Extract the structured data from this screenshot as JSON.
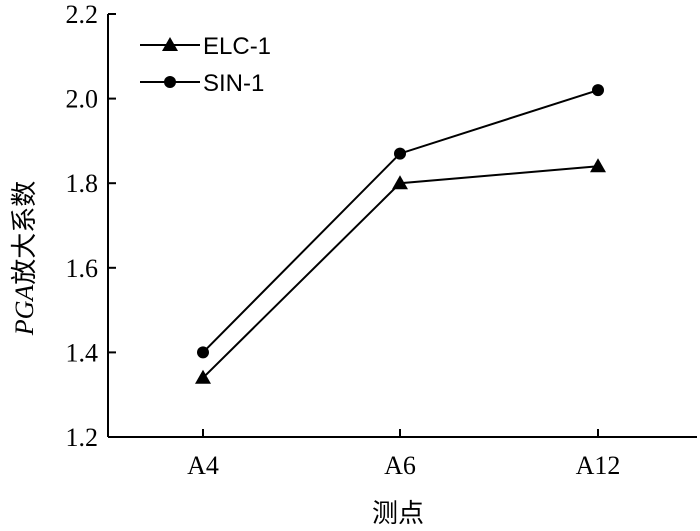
{
  "chart_data": {
    "type": "line",
    "categories": [
      "A4",
      "A6",
      "A12"
    ],
    "series": [
      {
        "name": "ELC-1",
        "marker": "triangle",
        "values": [
          1.34,
          1.8,
          1.84
        ]
      },
      {
        "name": "SIN-1",
        "marker": "circle",
        "values": [
          1.4,
          1.87,
          2.02
        ]
      }
    ],
    "xlabel": "测点",
    "ylabel_italic": "PGA",
    "ylabel_rest": "放大系数",
    "ylim": [
      1.2,
      2.2
    ],
    "yticks": [
      "1.2",
      "1.4",
      "1.6",
      "1.8",
      "2.0",
      "2.2"
    ],
    "ytick_values": [
      1.2,
      1.4,
      1.6,
      1.8,
      2.0,
      2.2
    ],
    "grid": false,
    "legend_position": "top-left",
    "colors": {
      "line": "#000000",
      "marker": "#000000"
    }
  }
}
